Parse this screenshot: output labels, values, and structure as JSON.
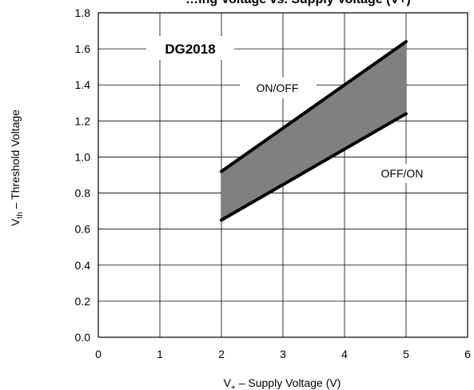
{
  "chart_data": {
    "type": "line",
    "title": "…ing Voltage vs. Supply Voltage (V+)",
    "xlabel": {
      "main": "V",
      "sub": "+",
      "rest": " – Supply Voltage (V)"
    },
    "ylabel": {
      "main": "V",
      "sub": "th",
      "rest": " – Threshold Voltage"
    },
    "xlim": [
      0,
      6
    ],
    "ylim": [
      0.0,
      1.8
    ],
    "x_ticks": [
      "0",
      "1",
      "2",
      "3",
      "4",
      "5",
      "6"
    ],
    "y_ticks": [
      "0.0",
      "0.2",
      "0.4",
      "0.6",
      "0.8",
      "1.0",
      "1.2",
      "1.4",
      "1.6",
      "1.8"
    ],
    "grid": true,
    "series": [
      {
        "name": "ON/OFF",
        "x": [
          2,
          5
        ],
        "y": [
          0.92,
          1.64
        ]
      },
      {
        "name": "OFF/ON",
        "x": [
          2,
          5
        ],
        "y": [
          0.65,
          1.24
        ]
      }
    ],
    "band_fill": "#808080",
    "line_color": "#000000",
    "annotations": {
      "device": "DG2018",
      "on_off": "ON/OFF",
      "off_on": "OFF/ON"
    }
  }
}
